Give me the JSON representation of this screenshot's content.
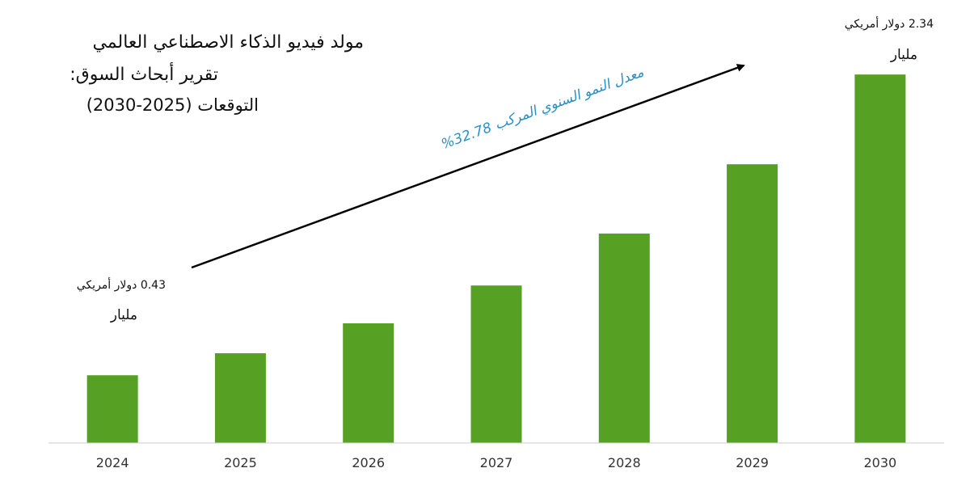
{
  "title": {
    "line1": "مولد فيديو الذكاء الاصطناعي العالمي",
    "line2": "تقرير أبحاث السوق:",
    "line3": "التوقعات (2025-2030)"
  },
  "annotations": {
    "start": {
      "value": "0.43 دولار أمريكي",
      "unit": "مليار"
    },
    "end": {
      "value": "2.34 دولار أمريكي",
      "unit": "مليار"
    },
    "cagr": "معدل النمو السنوي المركب 32.78%"
  },
  "colors": {
    "bar": "#56a124",
    "arrow": "#000000",
    "cagr_text": "#2a8fc8",
    "axis": "#cccccc"
  },
  "chart_data": {
    "type": "bar",
    "categories": [
      "2024",
      "2025",
      "2026",
      "2027",
      "2028",
      "2029",
      "2030"
    ],
    "values": [
      0.43,
      0.57,
      0.76,
      1.0,
      1.33,
      1.77,
      2.34
    ],
    "ylim": [
      0,
      2.5
    ],
    "grid": false,
    "legend": "none",
    "xlabel": "",
    "ylabel": ""
  }
}
